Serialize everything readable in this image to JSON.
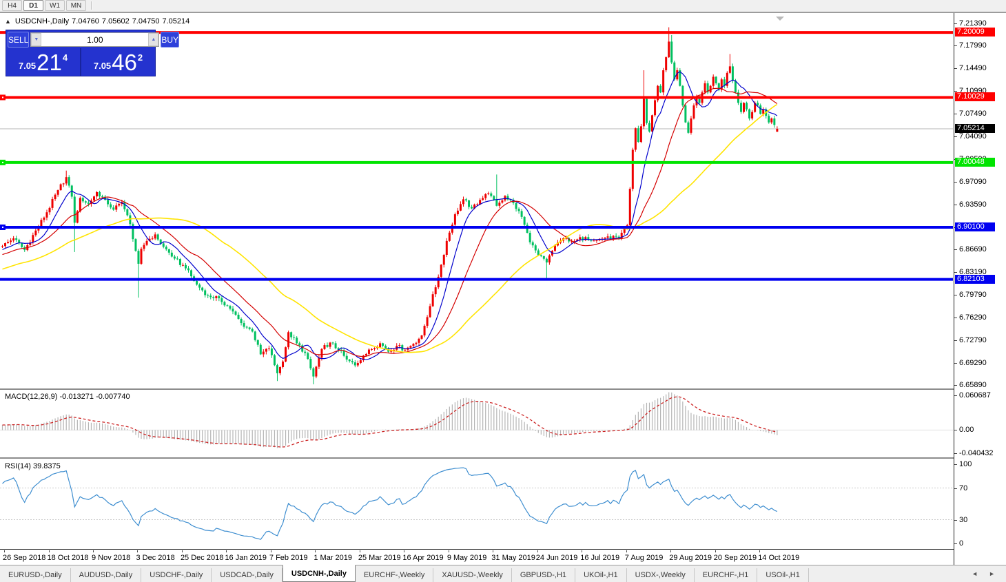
{
  "toolbar": {
    "timeframes": [
      {
        "label": "H4",
        "active": false
      },
      {
        "label": "D1",
        "active": true
      },
      {
        "label": "W1",
        "active": false
      },
      {
        "label": "MN",
        "active": false
      }
    ]
  },
  "symbol_header": {
    "collapse_icon": "▲",
    "symbol": "USDCNH-,Daily",
    "open": "7.04760",
    "high": "7.05602",
    "low": "7.04750",
    "close": "7.05214"
  },
  "quote_panel": {
    "sell_label": "SELL",
    "buy_label": "BUY",
    "volume": "1.00",
    "spin_down": "▼",
    "spin_up": "▲",
    "sell_price_prefix": "7.05",
    "sell_price_big": "21",
    "sell_price_sup": "4",
    "buy_price_prefix": "7.05",
    "buy_price_big": "46",
    "buy_price_sup": "2"
  },
  "price_axis": {
    "ticks": [
      "7.21390",
      "7.17990",
      "7.14490",
      "7.10990",
      "7.07490",
      "7.04090",
      "7.00590",
      "6.97090",
      "6.93590",
      "6.90090",
      "6.86690",
      "6.83190",
      "6.79790",
      "6.76290",
      "6.72790",
      "6.69290",
      "6.65890"
    ]
  },
  "chart_data": {
    "type": "candlestick",
    "symbol": "USDCNH-",
    "timeframe": "Daily",
    "bars_total": 280,
    "ylim": [
      6.6589,
      7.2139
    ],
    "up_color": "#ee0000",
    "down_color": "#00c060",
    "note": "Chinese color convention: red = bullish, green = bearish",
    "x_labels": [
      "26 Sep 2018",
      "18 Oct 2018",
      "9 Nov 2018",
      "3 Dec 2018",
      "25 Dec 2018",
      "16 Jan 2019",
      "7 Feb 2019",
      "1 Mar 2019",
      "25 Mar 2019",
      "16 Apr 2019",
      "9 May 2019",
      "31 May 2019",
      "24 Jun 2019",
      "16 Jul 2019",
      "7 Aug 2019",
      "29 Aug 2019",
      "20 Sep 2019",
      "14 Oct 2019"
    ],
    "x_label_first_bar": 1,
    "x_label_step": 16,
    "close_anchors": [
      [
        0,
        6.872
      ],
      [
        4,
        6.884
      ],
      [
        8,
        6.866
      ],
      [
        12,
        6.896
      ],
      [
        16,
        6.924
      ],
      [
        20,
        6.958
      ],
      [
        23,
        6.978
      ],
      [
        25,
        6.948
      ],
      [
        26,
        6.908
      ],
      [
        28,
        6.946
      ],
      [
        31,
        6.937
      ],
      [
        34,
        6.955
      ],
      [
        37,
        6.943
      ],
      [
        40,
        6.928
      ],
      [
        43,
        6.94
      ],
      [
        46,
        6.906
      ],
      [
        49,
        6.845
      ],
      [
        50,
        6.868
      ],
      [
        52,
        6.88
      ],
      [
        55,
        6.89
      ],
      [
        58,
        6.871
      ],
      [
        62,
        6.853
      ],
      [
        66,
        6.838
      ],
      [
        70,
        6.813
      ],
      [
        74,
        6.796
      ],
      [
        78,
        6.792
      ],
      [
        82,
        6.776
      ],
      [
        86,
        6.754
      ],
      [
        90,
        6.741
      ],
      [
        93,
        6.706
      ],
      [
        96,
        6.715
      ],
      [
        99,
        6.677
      ],
      [
        101,
        6.695
      ],
      [
        103,
        6.74
      ],
      [
        106,
        6.723
      ],
      [
        109,
        6.708
      ],
      [
        112,
        6.672
      ],
      [
        115,
        6.714
      ],
      [
        118,
        6.724
      ],
      [
        121,
        6.713
      ],
      [
        124,
        6.698
      ],
      [
        127,
        6.689
      ],
      [
        130,
        6.704
      ],
      [
        133,
        6.714
      ],
      [
        136,
        6.723
      ],
      [
        139,
        6.71
      ],
      [
        142,
        6.719
      ],
      [
        145,
        6.713
      ],
      [
        148,
        6.722
      ],
      [
        151,
        6.735
      ],
      [
        154,
        6.78
      ],
      [
        157,
        6.825
      ],
      [
        160,
        6.88
      ],
      [
        163,
        6.921
      ],
      [
        166,
        6.944
      ],
      [
        169,
        6.93
      ],
      [
        172,
        6.943
      ],
      [
        175,
        6.953
      ],
      [
        178,
        6.934
      ],
      [
        181,
        6.949
      ],
      [
        184,
        6.938
      ],
      [
        187,
        6.917
      ],
      [
        190,
        6.878
      ],
      [
        193,
        6.858
      ],
      [
        196,
        6.847
      ],
      [
        199,
        6.873
      ],
      [
        202,
        6.884
      ],
      [
        206,
        6.88
      ],
      [
        210,
        6.886
      ],
      [
        214,
        6.881
      ],
      [
        218,
        6.887
      ],
      [
        222,
        6.884
      ],
      [
        225,
        6.904
      ],
      [
        226,
        6.96
      ],
      [
        227,
        7.02
      ],
      [
        228,
        7.053
      ],
      [
        229,
        7.032
      ],
      [
        230,
        7.056
      ],
      [
        231,
        7.098
      ],
      [
        232,
        7.061
      ],
      [
        233,
        7.048
      ],
      [
        234,
        7.073
      ],
      [
        235,
        7.096
      ],
      [
        236,
        7.118
      ],
      [
        237,
        7.108
      ],
      [
        238,
        7.142
      ],
      [
        239,
        7.162
      ],
      [
        240,
        7.186
      ],
      [
        241,
        7.154
      ],
      [
        242,
        7.128
      ],
      [
        243,
        7.142
      ],
      [
        244,
        7.118
      ],
      [
        245,
        7.088
      ],
      [
        246,
        7.062
      ],
      [
        247,
        7.046
      ],
      [
        248,
        7.068
      ],
      [
        249,
        7.088
      ],
      [
        250,
        7.102
      ],
      [
        251,
        7.092
      ],
      [
        252,
        7.108
      ],
      [
        253,
        7.122
      ],
      [
        254,
        7.108
      ],
      [
        255,
        7.118
      ],
      [
        256,
        7.132
      ],
      [
        257,
        7.122
      ],
      [
        258,
        7.112
      ],
      [
        259,
        7.128
      ],
      [
        260,
        7.118
      ],
      [
        261,
        7.138
      ],
      [
        262,
        7.148
      ],
      [
        263,
        7.126
      ],
      [
        264,
        7.108
      ],
      [
        265,
        7.092
      ],
      [
        266,
        7.078
      ],
      [
        267,
        7.092
      ],
      [
        268,
        7.082
      ],
      [
        269,
        7.068
      ],
      [
        270,
        7.078
      ],
      [
        271,
        7.092
      ],
      [
        272,
        7.088
      ],
      [
        273,
        7.075
      ],
      [
        274,
        7.082
      ],
      [
        275,
        7.072
      ],
      [
        276,
        7.062
      ],
      [
        277,
        7.068
      ],
      [
        278,
        7.058
      ],
      [
        279,
        7.052
      ]
    ],
    "wick_overrides": [
      {
        "bar": 23,
        "high": 6.988
      },
      {
        "bar": 26,
        "low": 6.863
      },
      {
        "bar": 49,
        "low": 6.793
      },
      {
        "bar": 99,
        "low": 6.665
      },
      {
        "bar": 112,
        "low": 6.66
      },
      {
        "bar": 178,
        "high": 6.982
      },
      {
        "bar": 196,
        "low": 6.823
      },
      {
        "bar": 231,
        "high": 7.142
      },
      {
        "bar": 240,
        "high": 7.208
      },
      {
        "bar": 241,
        "high": 7.196
      },
      {
        "bar": 262,
        "high": 7.167
      },
      {
        "bar": 279,
        "open": 7.0476,
        "high": 7.05602,
        "low": 7.0475,
        "close": 7.05214
      }
    ],
    "moving_averages": [
      {
        "period": 9,
        "color": "#0000cc",
        "width": 1.2
      },
      {
        "period": 21,
        "color": "#d40000",
        "width": 1.2
      },
      {
        "period": 55,
        "color": "#ffe400",
        "width": 1.6
      }
    ],
    "h_lines": [
      {
        "price": 7.20009,
        "color": "#ff0000",
        "badge_fg": "#ffffff",
        "handle": false
      },
      {
        "price": 7.10029,
        "color": "#ff0000",
        "badge_fg": "#ffffff",
        "handle": true
      },
      {
        "price": 7.00048,
        "color": "#00e400",
        "badge_fg": "#ffffff",
        "handle": true
      },
      {
        "price": 6.901,
        "color": "#0000f0",
        "badge_fg": "#ffffff",
        "handle": true
      },
      {
        "price": 6.82103,
        "color": "#0000f0",
        "badge_fg": "#ffffff",
        "handle": false
      }
    ],
    "current_price": {
      "value": 7.05214,
      "label": "7.05214",
      "line_color": "#b4b4b4",
      "badge_bg": "#000000",
      "badge_fg": "#ffffff"
    },
    "indicators": [
      {
        "name": "MACD",
        "label": "MACD(12,26,9)",
        "value_main": "-0.013271",
        "value_signal": "-0.007740",
        "hist_color": "#b4b4b4",
        "signal_color": "#cc2222",
        "axis_labels": [
          {
            "text": "0.060687",
            "value": 0.060687
          },
          {
            "text": "0.00",
            "value": 0
          },
          {
            "text": "-0.040432",
            "value": -0.040432
          }
        ],
        "range": [
          -0.040432,
          0.060687
        ]
      },
      {
        "name": "RSI",
        "label": "RSI(14)",
        "value": "39.8375",
        "line_color": "#3e8ed0",
        "levels": [
          70,
          30
        ],
        "axis_labels": [
          {
            "text": "100",
            "value": 100
          },
          {
            "text": "70",
            "value": 70
          },
          {
            "text": "30",
            "value": 30
          },
          {
            "text": "0",
            "value": 0
          }
        ]
      }
    ]
  },
  "tabs": {
    "nav_prev": "◄",
    "nav_next": "►",
    "items": [
      {
        "label": "EURUSD-,Daily",
        "active": false
      },
      {
        "label": "AUDUSD-,Daily",
        "active": false
      },
      {
        "label": "USDCHF-,Daily",
        "active": false
      },
      {
        "label": "USDCAD-,Daily",
        "active": false
      },
      {
        "label": "USDCNH-,Daily",
        "active": true
      },
      {
        "label": "EURCHF-,Weekly",
        "active": false
      },
      {
        "label": "XAUUSD-,Weekly",
        "active": false
      },
      {
        "label": "GBPUSD-,H1",
        "active": false
      },
      {
        "label": "UKOil-,H1",
        "active": false
      },
      {
        "label": "USDX-,Weekly",
        "active": false
      },
      {
        "label": "EURCHF-,H1",
        "active": false
      },
      {
        "label": "USOil-,H1",
        "active": false
      }
    ]
  }
}
